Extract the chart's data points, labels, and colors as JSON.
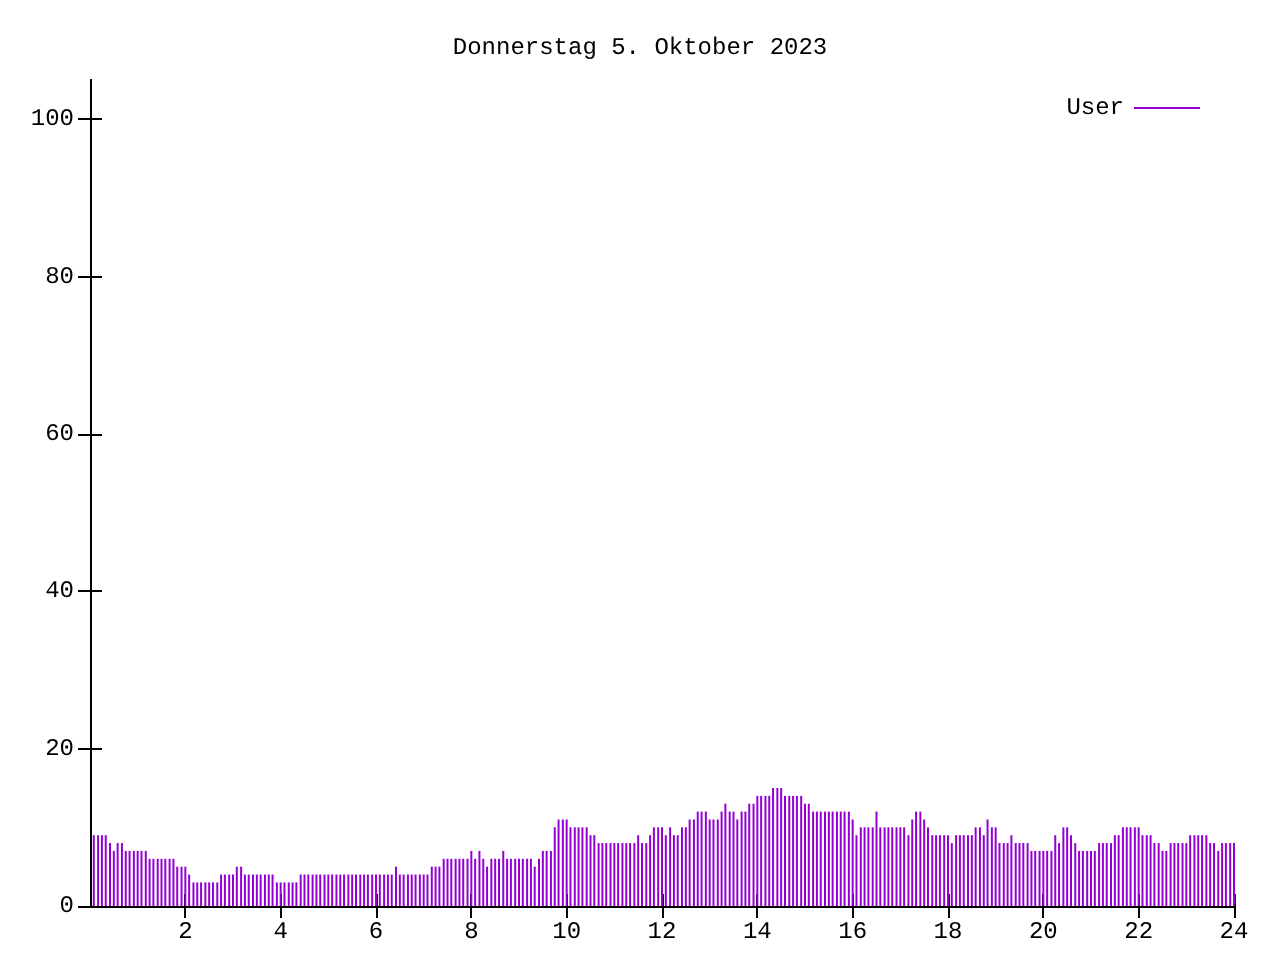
{
  "chart_data": {
    "type": "bar",
    "title": "Donnerstag 5. Oktober 2023",
    "x": [
      0.08,
      0.17,
      0.25,
      0.33,
      0.42,
      0.5,
      0.58,
      0.67,
      0.75,
      0.83,
      0.92,
      1,
      1.08,
      1.17,
      1.25,
      1.33,
      1.42,
      1.5,
      1.58,
      1.67,
      1.75,
      1.83,
      1.92,
      2,
      2.08,
      2.17,
      2.25,
      2.33,
      2.42,
      2.5,
      2.58,
      2.67,
      2.75,
      2.83,
      2.92,
      3,
      3.08,
      3.17,
      3.25,
      3.33,
      3.42,
      3.5,
      3.58,
      3.67,
      3.75,
      3.83,
      3.92,
      4,
      4.08,
      4.17,
      4.25,
      4.33,
      4.42,
      4.5,
      4.58,
      4.67,
      4.75,
      4.83,
      4.92,
      5,
      5.08,
      5.17,
      5.25,
      5.33,
      5.42,
      5.5,
      5.58,
      5.67,
      5.75,
      5.83,
      5.92,
      6,
      6.08,
      6.17,
      6.25,
      6.33,
      6.42,
      6.5,
      6.58,
      6.67,
      6.75,
      6.83,
      6.92,
      7,
      7.08,
      7.17,
      7.25,
      7.33,
      7.42,
      7.5,
      7.58,
      7.67,
      7.75,
      7.83,
      7.92,
      8,
      8.08,
      8.17,
      8.25,
      8.33,
      8.42,
      8.5,
      8.58,
      8.67,
      8.75,
      8.83,
      8.92,
      9,
      9.08,
      9.17,
      9.25,
      9.33,
      9.42,
      9.5,
      9.58,
      9.67,
      9.75,
      9.83,
      9.92,
      10,
      10.08,
      10.17,
      10.25,
      10.33,
      10.42,
      10.5,
      10.58,
      10.67,
      10.75,
      10.83,
      10.92,
      11,
      11.08,
      11.17,
      11.25,
      11.33,
      11.42,
      11.5,
      11.58,
      11.67,
      11.75,
      11.83,
      11.92,
      12,
      12.08,
      12.17,
      12.25,
      12.33,
      12.42,
      12.5,
      12.58,
      12.67,
      12.75,
      12.83,
      12.92,
      13,
      13.08,
      13.17,
      13.25,
      13.33,
      13.42,
      13.5,
      13.58,
      13.67,
      13.75,
      13.83,
      13.92,
      14,
      14.08,
      14.17,
      14.25,
      14.33,
      14.42,
      14.5,
      14.58,
      14.67,
      14.75,
      14.83,
      14.92,
      15,
      15.08,
      15.17,
      15.25,
      15.33,
      15.42,
      15.5,
      15.58,
      15.67,
      15.75,
      15.83,
      15.92,
      16,
      16.08,
      16.17,
      16.25,
      16.33,
      16.42,
      16.5,
      16.58,
      16.67,
      16.75,
      16.83,
      16.92,
      17,
      17.08,
      17.17,
      17.25,
      17.33,
      17.42,
      17.5,
      17.58,
      17.67,
      17.75,
      17.83,
      17.92,
      18,
      18.08,
      18.17,
      18.25,
      18.33,
      18.42,
      18.5,
      18.58,
      18.67,
      18.75,
      18.83,
      18.92,
      19,
      19.08,
      19.17,
      19.25,
      19.33,
      19.42,
      19.5,
      19.58,
      19.67,
      19.75,
      19.83,
      19.92,
      20,
      20.08,
      20.17,
      20.25,
      20.33,
      20.42,
      20.5,
      20.58,
      20.67,
      20.75,
      20.83,
      20.92,
      21,
      21.08,
      21.17,
      21.25,
      21.33,
      21.42,
      21.5,
      21.58,
      21.67,
      21.75,
      21.83,
      21.92,
      22,
      22.08,
      22.17,
      22.25,
      22.33,
      22.42,
      22.5,
      22.58,
      22.67,
      22.75,
      22.83,
      22.92,
      23,
      23.08,
      23.17,
      23.25,
      23.33,
      23.42,
      23.5,
      23.58,
      23.67,
      23.75,
      23.83,
      23.92,
      24
    ],
    "series": [
      {
        "name": "User",
        "color": "#9400d3",
        "values": [
          9,
          9,
          9,
          9,
          8,
          7,
          8,
          8,
          7,
          7,
          7,
          7,
          7,
          7,
          6,
          6,
          6,
          6,
          6,
          6,
          6,
          5,
          5,
          5,
          4,
          3,
          3,
          3,
          3,
          3,
          3,
          3,
          4,
          4,
          4,
          4,
          5,
          5,
          4,
          4,
          4,
          4,
          4,
          4,
          4,
          4,
          3,
          3,
          3,
          3,
          3,
          3,
          4,
          4,
          4,
          4,
          4,
          4,
          4,
          4,
          4,
          4,
          4,
          4,
          4,
          4,
          4,
          4,
          4,
          4,
          4,
          4,
          4,
          4,
          4,
          4,
          5,
          4,
          4,
          4,
          4,
          4,
          4,
          4,
          4,
          5,
          5,
          5,
          6,
          6,
          6,
          6,
          6,
          6,
          6,
          7,
          6,
          7,
          6,
          5,
          6,
          6,
          6,
          7,
          6,
          6,
          6,
          6,
          6,
          6,
          6,
          5,
          6,
          7,
          7,
          7,
          10,
          11,
          11,
          11,
          10,
          10,
          10,
          10,
          10,
          9,
          9,
          8,
          8,
          8,
          8,
          8,
          8,
          8,
          8,
          8,
          8,
          9,
          8,
          8,
          9,
          10,
          10,
          10,
          9,
          10,
          9,
          9,
          10,
          10,
          11,
          11,
          12,
          12,
          12,
          11,
          11,
          11,
          12,
          13,
          12,
          12,
          11,
          12,
          12,
          13,
          13,
          14,
          14,
          14,
          14,
          15,
          15,
          15,
          14,
          14,
          14,
          14,
          14,
          13,
          13,
          12,
          12,
          12,
          12,
          12,
          12,
          12,
          12,
          12,
          12,
          11,
          9,
          10,
          10,
          10,
          10,
          12,
          10,
          10,
          10,
          10,
          10,
          10,
          10,
          9,
          11,
          12,
          12,
          11,
          10,
          9,
          9,
          9,
          9,
          9,
          8,
          9,
          9,
          9,
          9,
          9,
          10,
          10,
          9,
          11,
          10,
          10,
          8,
          8,
          8,
          9,
          8,
          8,
          8,
          8,
          7,
          7,
          7,
          7,
          7,
          7,
          9,
          8,
          10,
          10,
          9,
          8,
          7,
          7,
          7,
          7,
          7,
          8,
          8,
          8,
          8,
          9,
          9,
          10,
          10,
          10,
          10,
          10,
          9,
          9,
          9,
          8,
          8,
          7,
          7,
          8,
          8,
          8,
          8,
          8,
          9,
          9,
          9,
          9,
          9,
          8,
          8,
          7,
          8,
          8,
          8,
          8
        ]
      }
    ],
    "xlim": [
      0,
      24
    ],
    "xticks": [
      2,
      4,
      6,
      8,
      10,
      12,
      14,
      16,
      18,
      20,
      22,
      24
    ],
    "ylim": [
      0,
      105
    ],
    "yticks": [
      0,
      20,
      40,
      60,
      80,
      100
    ],
    "legend": "top right"
  }
}
